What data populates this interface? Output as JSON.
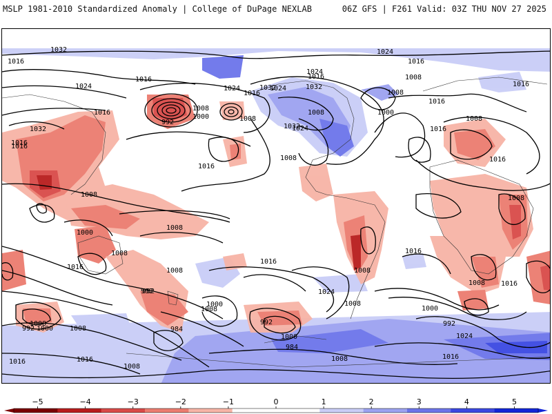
{
  "header": {
    "left_title": "MSLP 1981-2010 Standardized Anomaly | College of DuPage NEXLAB",
    "right_title": "06Z GFS | F261 Valid: 03Z THU NOV 27 2025"
  },
  "map": {
    "field": "MSLP standardized anomaly",
    "projection": "global cylindrical",
    "isobar_labels": [
      "1032",
      "1016",
      "1024",
      "1016",
      "1016",
      "1032",
      "1016",
      "992",
      "1008",
      "1000",
      "1008",
      "1016",
      "1016",
      "1024",
      "1016",
      "1032",
      "1024",
      "1024",
      "1008",
      "1032",
      "1024",
      "1032",
      "1016",
      "1008",
      "1024",
      "1000",
      "1016",
      "1008",
      "1016",
      "1008",
      "1016",
      "1008",
      "1016",
      "1016",
      "1008",
      "1008",
      "1008",
      "1000",
      "1016",
      "1008",
      "992",
      "984",
      "992",
      "1000",
      "1008",
      "992",
      "1008",
      "1016",
      "1008",
      "1024",
      "1008",
      "1016",
      "1008",
      "1016",
      "1008",
      "1000",
      "992",
      "1000",
      "1008",
      "1024",
      "1016",
      "1000",
      "1008",
      "1016",
      "992",
      "984",
      "1016",
      "1008"
    ],
    "anomaly_colors": {
      "neg5": "#8b0000",
      "neg4": "#b22222",
      "neg3": "#d94c4c",
      "neg2": "#ee8070",
      "neg1": "#f7b5a5",
      "pos1": "#c8ccf8",
      "pos2": "#9aa0f2",
      "pos3": "#6670ea",
      "pos4": "#3646e0",
      "pos5": "#0a1ed6"
    }
  },
  "colorbar": {
    "ticks": [
      "−5",
      "−4",
      "−3",
      "−2",
      "−1",
      "0",
      "1",
      "2",
      "3",
      "4",
      "5"
    ],
    "colors": [
      "#7a0000",
      "#b81d1d",
      "#d94a48",
      "#ec7c6f",
      "#f7b4a6",
      "#ffffff",
      "#ffffff",
      "#c9cdf7",
      "#9ca2f1",
      "#6c74ea",
      "#3b48e2",
      "#1226d8"
    ]
  }
}
